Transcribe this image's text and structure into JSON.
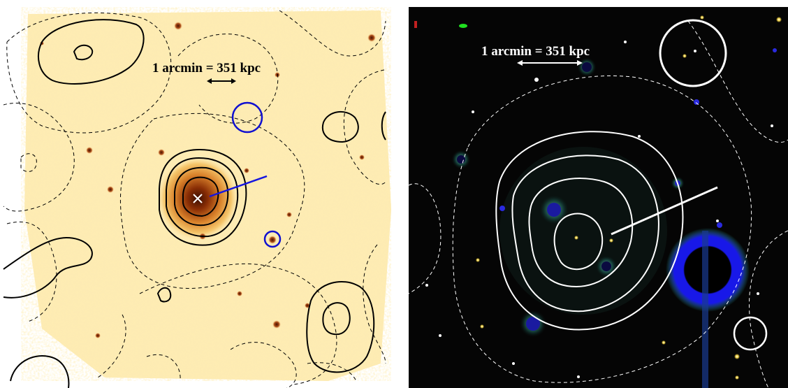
{
  "left_panel": {
    "scale_label": "1 arcmin = 351 kpc",
    "colors": {
      "background": "#fff3c8",
      "contour": "#000000",
      "marker": "#1010d0",
      "center": "#ffffff"
    }
  },
  "right_panel": {
    "scale_label": "1 arcmin = 351 kpc",
    "colors": {
      "background": "#050505",
      "contour": "#ffffff",
      "bright_star": "#1818e8"
    }
  }
}
